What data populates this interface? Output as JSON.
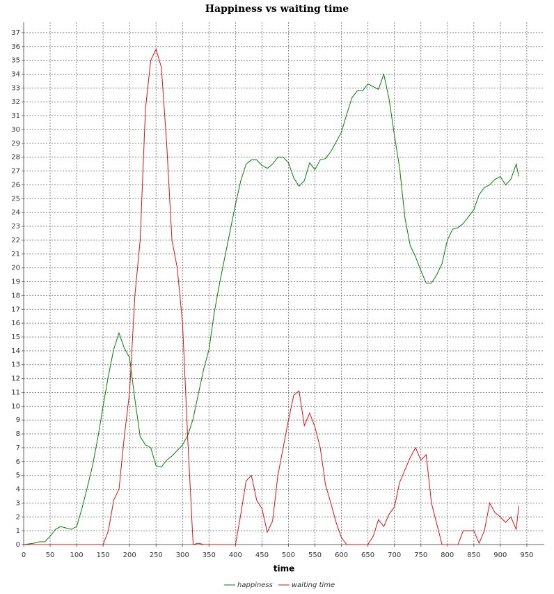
{
  "chart_data": {
    "type": "line",
    "title": "Happiness vs waiting time",
    "xlabel": "time",
    "x": [
      0,
      10,
      20,
      30,
      40,
      50,
      60,
      70,
      80,
      90,
      100,
      110,
      120,
      130,
      140,
      150,
      160,
      170,
      180,
      190,
      200,
      210,
      220,
      230,
      240,
      250,
      260,
      270,
      280,
      290,
      300,
      310,
      320,
      330,
      340,
      350,
      360,
      370,
      380,
      390,
      400,
      410,
      420,
      430,
      440,
      450,
      460,
      470,
      480,
      490,
      500,
      510,
      520,
      530,
      540,
      550,
      560,
      570,
      580,
      590,
      600,
      610,
      620,
      630,
      640,
      650,
      660,
      670,
      680,
      690,
      700,
      710,
      720,
      730,
      740,
      750,
      760,
      770,
      780,
      790,
      800,
      810,
      820,
      830,
      840,
      850,
      860,
      870,
      880,
      890,
      900,
      910,
      920,
      930,
      935
    ],
    "series": [
      {
        "name": "happiness",
        "color": "#008000",
        "values": [
          0,
          0.05,
          0.1,
          0.2,
          0.2,
          0.6,
          1.1,
          1.3,
          1.2,
          1.1,
          1.3,
          2.6,
          4.1,
          5.7,
          7.7,
          10.0,
          12.2,
          14.1,
          15.3,
          14.2,
          13.5,
          10.5,
          7.8,
          7.2,
          7.0,
          5.7,
          5.6,
          6.1,
          6.4,
          6.8,
          7.2,
          7.9,
          9.1,
          10.9,
          12.7,
          14.1,
          16.8,
          18.9,
          20.8,
          22.7,
          24.6,
          26.3,
          27.5,
          27.8,
          27.8,
          27.4,
          27.2,
          27.5,
          28.0,
          28.0,
          27.6,
          26.5,
          25.9,
          26.3,
          27.6,
          27.1,
          27.8,
          27.9,
          28.4,
          29.1,
          29.8,
          31.1,
          32.3,
          32.8,
          32.8,
          33.3,
          33.1,
          32.9,
          34.0,
          32.2,
          29.6,
          27.2,
          23.6,
          21.6,
          20.8,
          19.8,
          18.9,
          18.9,
          19.5,
          20.3,
          22.0,
          22.8,
          22.9,
          23.2,
          23.7,
          24.2,
          25.3,
          25.8,
          26.0,
          26.4,
          26.6,
          26.0,
          26.4,
          27.5,
          26.6
        ]
      },
      {
        "name": "waiting time",
        "color": "#e01010",
        "values": [
          0,
          0,
          0,
          0,
          0,
          0,
          0,
          0,
          0,
          0,
          0,
          0,
          0,
          0,
          0,
          0,
          1.0,
          3.2,
          4.0,
          7.8,
          11,
          18,
          22,
          31.5,
          35,
          35.8,
          34.5,
          29,
          22,
          20,
          16,
          7.5,
          0,
          0.1,
          0,
          0,
          0,
          0,
          0,
          0,
          0,
          2.2,
          4.6,
          5,
          3.2,
          2.6,
          0.9,
          1.7,
          5,
          7,
          9,
          10.8,
          11.1,
          8.6,
          9.5,
          8.5,
          7,
          4.3,
          3,
          1.6,
          0.5,
          0,
          0,
          0,
          0,
          0,
          0.6,
          1.8,
          1.3,
          2.2,
          2.7,
          4.5,
          5.4,
          6.3,
          7,
          6.1,
          6.5,
          3,
          1.5,
          0,
          0,
          0,
          0,
          1,
          1,
          1,
          0.1,
          1,
          3,
          2.3,
          2,
          1.6,
          2,
          1.1,
          2.8
        ]
      }
    ],
    "xlim": [
      0,
      983
    ],
    "ylim": [
      0,
      37.75
    ],
    "xticks": [
      0,
      50,
      100,
      150,
      200,
      250,
      300,
      350,
      400,
      450,
      500,
      550,
      600,
      650,
      700,
      750,
      800,
      850,
      900,
      950
    ],
    "yticks": [
      0,
      1,
      2,
      3,
      4,
      5,
      6,
      7,
      8,
      9,
      10,
      11,
      12,
      13,
      14,
      15,
      16,
      17,
      18,
      19,
      20,
      21,
      22,
      23,
      24,
      25,
      26,
      27,
      28,
      29,
      30,
      31,
      32,
      33,
      34,
      35,
      36,
      37
    ],
    "grid": true,
    "legend": "bottom"
  }
}
